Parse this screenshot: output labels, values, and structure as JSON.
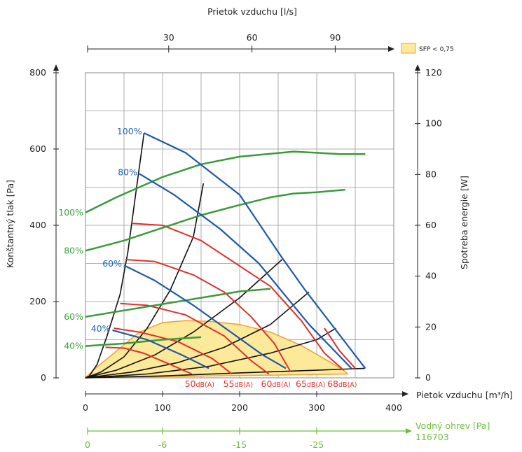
{
  "chart_data": {
    "type": "line",
    "title": "",
    "xlabel": "Pietok vzduchu [m³/h]",
    "ylabel": "Konštantný tlak [Pa]",
    "y2label": "Spotreba energie [W]",
    "top_axis_label": "Prietok vzduchu [l/s]",
    "water_axis_label": "Vodný ohrev [Pa]",
    "water_axis_id": "116703",
    "legend": {
      "label": "SFP < 0,75",
      "placement": "top-right",
      "color": "#fde99a"
    },
    "xlim": [
      0,
      400
    ],
    "ylim": [
      0,
      800
    ],
    "y2lim": [
      0,
      120
    ],
    "grid": true,
    "x_ticks": [
      "0",
      "100",
      "200",
      "300",
      "400"
    ],
    "y_ticks": [
      "0",
      "200",
      "400",
      "600",
      "800"
    ],
    "y2_ticks": [
      "0",
      "20",
      "40",
      "60",
      "80",
      "100",
      "120"
    ],
    "top_ticks": [
      {
        "label": "30",
        "x": 108
      },
      {
        "label": "60",
        "x": 216
      },
      {
        "label": "90",
        "x": 324
      }
    ],
    "water_ticks": [
      {
        "label": "0",
        "x": 0
      },
      {
        "label": "-6",
        "x": 100
      },
      {
        "label": "-15",
        "x": 200
      },
      {
        "label": "-25",
        "x": 300
      }
    ],
    "fan_curves": [
      {
        "name": "100%",
        "points": [
          [
            76,
            642
          ],
          [
            130,
            590
          ],
          [
            200,
            480
          ],
          [
            255,
            315
          ],
          [
            285,
            230
          ],
          [
            363,
            25
          ]
        ]
      },
      {
        "name": "80%",
        "points": [
          [
            70,
            535
          ],
          [
            115,
            480
          ],
          [
            175,
            390
          ],
          [
            225,
            300
          ],
          [
            290,
            140
          ],
          [
            345,
            25
          ]
        ]
      },
      {
        "name": "60%",
        "points": [
          [
            50,
            295
          ],
          [
            90,
            255
          ],
          [
            140,
            190
          ],
          [
            185,
            125
          ],
          [
            230,
            60
          ],
          [
            260,
            25
          ]
        ]
      },
      {
        "name": "40%",
        "points": [
          [
            35,
            125
          ],
          [
            80,
            100
          ],
          [
            125,
            60
          ],
          [
            155,
            30
          ],
          [
            160,
            25
          ]
        ]
      }
    ],
    "power_curves": [
      {
        "name": "100%",
        "values_W": [
          [
            0,
            65
          ],
          [
            40,
            71
          ],
          [
            100,
            79
          ],
          [
            150,
            84
          ],
          [
            200,
            87
          ],
          [
            270,
            89
          ],
          [
            300,
            88.5
          ],
          [
            330,
            88
          ],
          [
            363,
            88
          ]
        ]
      },
      {
        "name": "80%",
        "values_W": [
          [
            0,
            50
          ],
          [
            50,
            54
          ],
          [
            100,
            59
          ],
          [
            150,
            64
          ],
          [
            200,
            68
          ],
          [
            240,
            71
          ],
          [
            270,
            72.5
          ],
          [
            300,
            73
          ],
          [
            337,
            74
          ]
        ]
      },
      {
        "name": "60%",
        "values_W": [
          [
            0,
            24
          ],
          [
            50,
            26.5
          ],
          [
            100,
            29
          ],
          [
            150,
            31.5
          ],
          [
            200,
            34
          ],
          [
            240,
            35
          ]
        ]
      },
      {
        "name": "40%",
        "values_W": [
          [
            0,
            12.5
          ],
          [
            50,
            13.5
          ],
          [
            100,
            15
          ],
          [
            150,
            16
          ]
        ]
      }
    ],
    "noise_curves": [
      {
        "name": "50dB(A)",
        "points": [
          [
            26,
            80
          ],
          [
            50,
            78
          ],
          [
            75,
            65
          ],
          [
            110,
            35
          ],
          [
            138,
            10
          ]
        ]
      },
      {
        "name": "55dB(A)",
        "points": [
          [
            37,
            130
          ],
          [
            70,
            120
          ],
          [
            120,
            95
          ],
          [
            165,
            50
          ],
          [
            190,
            10
          ]
        ]
      },
      {
        "name": "60dB(A)",
        "points": [
          [
            45,
            195
          ],
          [
            80,
            190
          ],
          [
            130,
            165
          ],
          [
            180,
            110
          ],
          [
            215,
            45
          ],
          [
            238,
            10
          ]
        ]
      },
      {
        "name": "60dB(A)",
        "points": [
          [
            52,
            310
          ],
          [
            90,
            305
          ],
          [
            140,
            270
          ],
          [
            180,
            225
          ],
          [
            215,
            160
          ],
          [
            245,
            90
          ],
          [
            265,
            20
          ]
        ]
      },
      {
        "name": "65dB(A)",
        "points": [
          [
            60,
            405
          ],
          [
            100,
            400
          ],
          [
            150,
            360
          ],
          [
            195,
            300
          ],
          [
            240,
            240
          ],
          [
            280,
            150
          ],
          [
            310,
            65
          ],
          [
            335,
            20
          ]
        ]
      },
      {
        "name": "68dB(A)",
        "points": [
          [
            310,
            130
          ],
          [
            330,
            70
          ],
          [
            350,
            25
          ]
        ]
      }
    ],
    "noise_labels": [
      {
        "label": "50",
        "suffix": "dB(A)",
        "x": 148
      },
      {
        "label": "55",
        "suffix": "dB(A)",
        "x": 198
      },
      {
        "label": "60",
        "suffix": "dB(A)",
        "x": 247
      },
      {
        "label": "65",
        "suffix": "dB(A)",
        "x": 292
      },
      {
        "label": "68",
        "suffix": "dB(A)",
        "x": 333
      }
    ],
    "system_curves": [
      [
        [
          0,
          0
        ],
        [
          5,
          5
        ],
        [
          15,
          35
        ],
        [
          28,
          110
        ],
        [
          45,
          220
        ],
        [
          55,
          330
        ],
        [
          65,
          480
        ],
        [
          76,
          642
        ]
      ],
      [
        [
          0,
          0
        ],
        [
          20,
          15
        ],
        [
          50,
          55
        ],
        [
          80,
          130
        ],
        [
          110,
          230
        ],
        [
          140,
          370
        ],
        [
          153,
          510
        ]
      ],
      [
        [
          0,
          0
        ],
        [
          40,
          20
        ],
        [
          90,
          60
        ],
        [
          140,
          120
        ],
        [
          200,
          210
        ],
        [
          255,
          310
        ]
      ],
      [
        [
          0,
          0
        ],
        [
          60,
          15
        ],
        [
          120,
          40
        ],
        [
          180,
          80
        ],
        [
          240,
          140
        ],
        [
          290,
          225
        ]
      ],
      [
        [
          0,
          0
        ],
        [
          80,
          10
        ],
        [
          160,
          30
        ],
        [
          240,
          65
        ],
        [
          300,
          100
        ],
        [
          325,
          130
        ]
      ],
      [
        [
          0,
          0
        ],
        [
          100,
          5
        ],
        [
          200,
          13
        ],
        [
          300,
          20
        ],
        [
          363,
          25
        ]
      ]
    ],
    "sfp_area": [
      [
        10,
        20
      ],
      [
        40,
        70
      ],
      [
        70,
        120
      ],
      [
        100,
        145
      ],
      [
        130,
        150
      ],
      [
        160,
        148
      ],
      [
        200,
        140
      ],
      [
        240,
        120
      ],
      [
        280,
        85
      ],
      [
        310,
        50
      ],
      [
        335,
        20
      ],
      [
        340,
        10
      ],
      [
        0,
        0
      ]
    ]
  }
}
